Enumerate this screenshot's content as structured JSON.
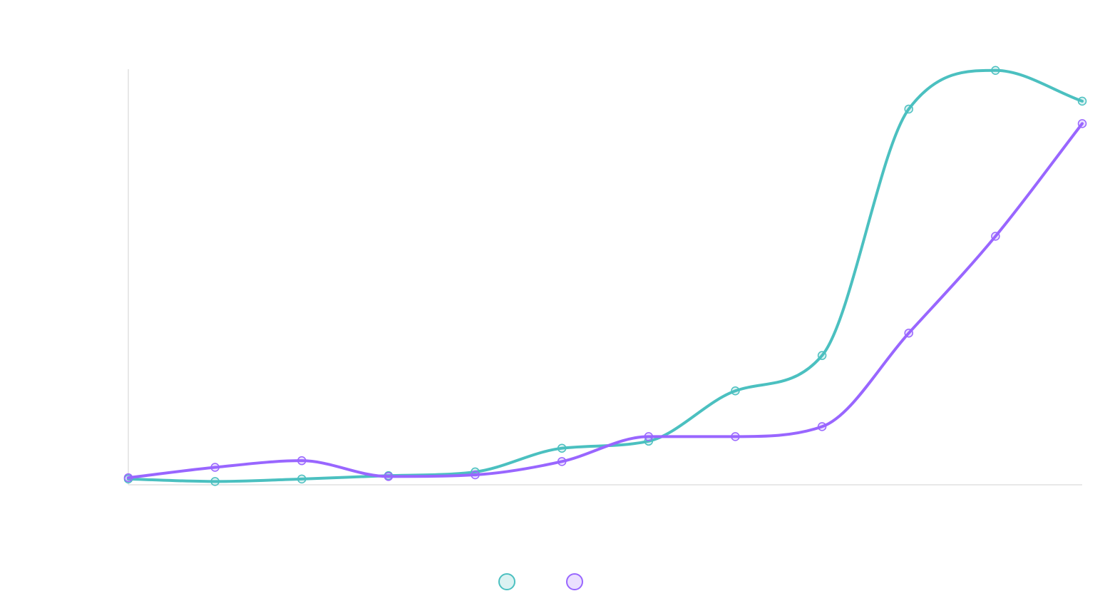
{
  "chart_data": {
    "type": "line",
    "title": "",
    "xlabel": "",
    "ylabel": "",
    "grid": false,
    "legend_placement": "bottom-center",
    "x": [
      0,
      1,
      2,
      3,
      4,
      5,
      6,
      7,
      8,
      9,
      10,
      11
    ],
    "ylim": [
      0,
      100
    ],
    "series": [
      {
        "color": "#4bc0c0",
        "values": [
          1.4,
          0.8,
          1.4,
          2.2,
          3.1,
          8.8,
          10.5,
          22.6,
          31.1,
          90.4,
          99.7,
          92.3
        ]
      },
      {
        "color": "#9966ff",
        "values": [
          1.7,
          4.2,
          5.8,
          2.0,
          2.4,
          5.6,
          11.6,
          11.6,
          14.0,
          36.5,
          59.8,
          86.9
        ]
      }
    ]
  }
}
